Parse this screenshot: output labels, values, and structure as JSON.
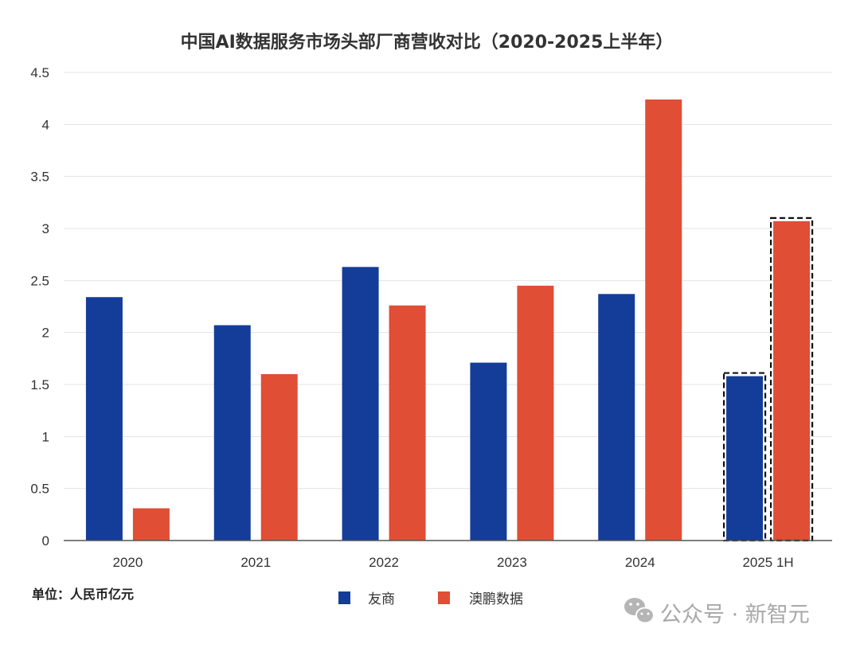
{
  "chart_data": {
    "type": "bar",
    "title": "中国AI数据服务市场头部厂商营收对比（2020-2025上半年）",
    "xlabel": "",
    "ylabel": "",
    "unit_note": "单位：人民币亿元",
    "categories": [
      "2020",
      "2021",
      "2022",
      "2023",
      "2024",
      "2025 1H"
    ],
    "series": [
      {
        "name": "友商",
        "color": "#133d98",
        "values": [
          2.34,
          2.07,
          2.63,
          1.71,
          2.37,
          1.58
        ]
      },
      {
        "name": "澳鹏数据",
        "color": "#e04e36",
        "values": [
          0.31,
          1.6,
          2.26,
          2.45,
          4.24,
          3.07
        ]
      }
    ],
    "ylim": [
      0,
      4.5
    ],
    "yticks": [
      "0",
      "0.5",
      "1",
      "1.5",
      "2",
      "2.5",
      "3",
      "3.5",
      "4",
      "4.5"
    ],
    "ytick_values": [
      0,
      0.5,
      1,
      1.5,
      2,
      2.5,
      3,
      3.5,
      4,
      4.5
    ],
    "grid": true,
    "legend_position": "bottom",
    "highlighted_category": "2025 1H",
    "highlight_style": "dashed-outline"
  },
  "watermark": {
    "text": "公众号 · 新智元",
    "icon": "wechat-icon"
  },
  "colors": {
    "gridline": "#e3e3e3",
    "axis": "#555555",
    "highlight_border": "#111111"
  }
}
